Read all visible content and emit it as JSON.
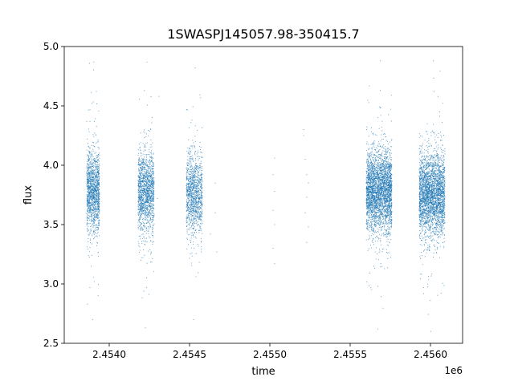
{
  "chart_data": {
    "type": "scatter",
    "title": "1SWASPJ145057.98-350415.7",
    "xlabel": "time",
    "ylabel": "flux",
    "x_offset_label": "1e6",
    "xlim": [
      2.45372,
      2.4562
    ],
    "ylim": [
      2.5,
      5.0
    ],
    "x_ticks": [
      2.454,
      2.4545,
      2.455,
      2.4555,
      2.456
    ],
    "x_tick_labels": [
      "2.4540",
      "2.4545",
      "2.4550",
      "2.4555",
      "2.4560"
    ],
    "y_ticks": [
      2.5,
      3.0,
      3.5,
      4.0,
      4.5,
      5.0
    ],
    "y_tick_labels": [
      "2.5",
      "3.0",
      "3.5",
      "4.0",
      "4.5",
      "5.0"
    ],
    "grid": false,
    "marker_color": "#1f77b4",
    "clusters": [
      {
        "x_range": [
          2.45386,
          2.45394
        ],
        "flux_center": 3.78,
        "flux_range": [
          2.7,
          4.87
        ],
        "approx_points": 1400
      },
      {
        "x_range": [
          2.45418,
          2.45428
        ],
        "flux_center": 3.78,
        "flux_range": [
          2.63,
          4.87
        ],
        "approx_points": 1500
      },
      {
        "x_range": [
          2.45448,
          2.45458
        ],
        "flux_center": 3.75,
        "flux_range": [
          2.7,
          4.82
        ],
        "approx_points": 1200
      },
      {
        "x_range": [
          2.4556,
          2.45576
        ],
        "flux_center": 3.78,
        "flux_range": [
          2.62,
          4.88
        ],
        "approx_points": 3200
      },
      {
        "x_range": [
          2.45593,
          2.45609
        ],
        "flux_center": 3.75,
        "flux_range": [
          2.6,
          4.88
        ],
        "approx_points": 3000
      }
    ],
    "sparse_points": [
      {
        "x": 2.45431,
        "y": 4.58
      },
      {
        "x": 2.4543,
        "y": 3.72
      },
      {
        "x": 2.45466,
        "y": 3.85
      },
      {
        "x": 2.45466,
        "y": 3.6
      },
      {
        "x": 2.45467,
        "y": 3.27
      },
      {
        "x": 2.45463,
        "y": 3.42
      },
      {
        "x": 2.45503,
        "y": 4.06
      },
      {
        "x": 2.45502,
        "y": 3.92
      },
      {
        "x": 2.45503,
        "y": 3.78
      },
      {
        "x": 2.45502,
        "y": 3.62
      },
      {
        "x": 2.45503,
        "y": 3.5
      },
      {
        "x": 2.45502,
        "y": 3.3
      },
      {
        "x": 2.45503,
        "y": 3.17
      },
      {
        "x": 2.45521,
        "y": 4.3
      },
      {
        "x": 2.45521,
        "y": 4.25
      },
      {
        "x": 2.45522,
        "y": 4.05
      },
      {
        "x": 2.45523,
        "y": 3.92
      },
      {
        "x": 2.45524,
        "y": 3.85
      },
      {
        "x": 2.45523,
        "y": 3.73
      },
      {
        "x": 2.45522,
        "y": 3.6
      },
      {
        "x": 2.45524,
        "y": 3.48
      },
      {
        "x": 2.45523,
        "y": 3.35
      }
    ]
  }
}
